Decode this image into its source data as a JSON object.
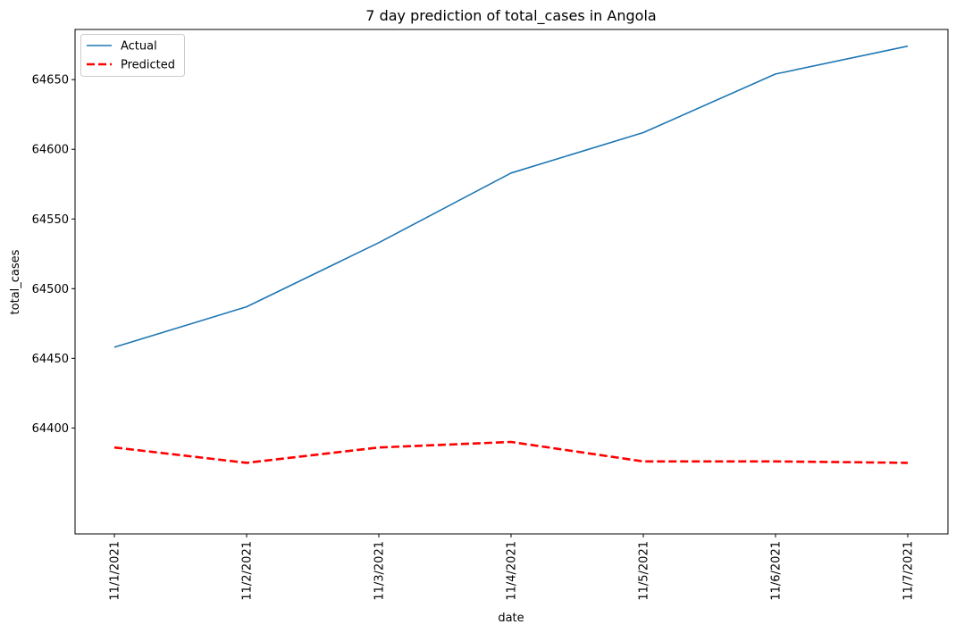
{
  "chart_data": {
    "type": "line",
    "title": "7 day prediction of total_cases in Angola",
    "xlabel": "date",
    "ylabel": "total_cases",
    "categories": [
      "11/1/2021",
      "11/2/2021",
      "11/3/2021",
      "11/4/2021",
      "11/5/2021",
      "11/6/2021",
      "11/7/2021"
    ],
    "ylim": [
      64324,
      64686
    ],
    "yticks": [
      64400,
      64450,
      64500,
      64550,
      64600,
      64650
    ],
    "grid": false,
    "legend_position": "top-left",
    "series": [
      {
        "name": "Actual",
        "color": "#1f77b4",
        "style": "solid",
        "values": [
          64458,
          64487,
          64533,
          64583,
          64612,
          64654,
          64674
        ]
      },
      {
        "name": "Predicted",
        "color": "#ff0000",
        "style": "dashed",
        "values": [
          64386,
          64375,
          64386,
          64390,
          64376,
          64376,
          64375
        ]
      }
    ]
  }
}
